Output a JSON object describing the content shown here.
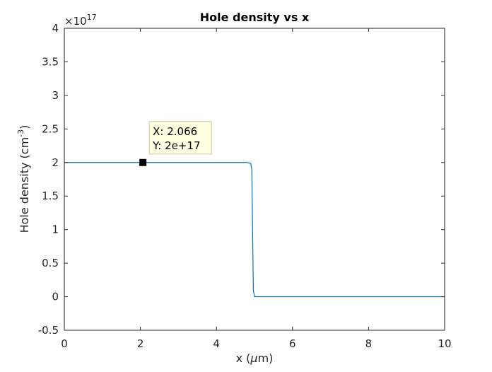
{
  "chart_data": {
    "type": "line",
    "title": "Hole density vs x",
    "xlabel": {
      "prefix": "x (",
      "greek": "μ",
      "suffix": "m)"
    },
    "ylabel": {
      "prefix": "Hole density (cm",
      "sup": "-3",
      "suffix": ")"
    },
    "y_exponent": {
      "base": "×10",
      "power": "17"
    },
    "xlim": [
      0,
      10
    ],
    "ylim": [
      -0.5,
      4
    ],
    "x_ticks": [
      "0",
      "2",
      "4",
      "6",
      "8",
      "10"
    ],
    "y_ticks": [
      "-0.5",
      "0",
      "0.5",
      "1",
      "1.5",
      "2",
      "2.5",
      "3",
      "3.5",
      "4"
    ],
    "grid": false,
    "line_color": "#0072BD",
    "series": [
      {
        "x": [
          0,
          4.8,
          4.9,
          4.93,
          4.95,
          4.97,
          5.0,
          10
        ],
        "y": [
          2,
          2,
          1.99,
          1.9,
          1.0,
          0.1,
          0,
          0
        ]
      }
    ],
    "datatip": {
      "x": 2.066,
      "y": 2,
      "x_text": "X: 2.066",
      "y_text": "Y: 2e+17"
    }
  }
}
